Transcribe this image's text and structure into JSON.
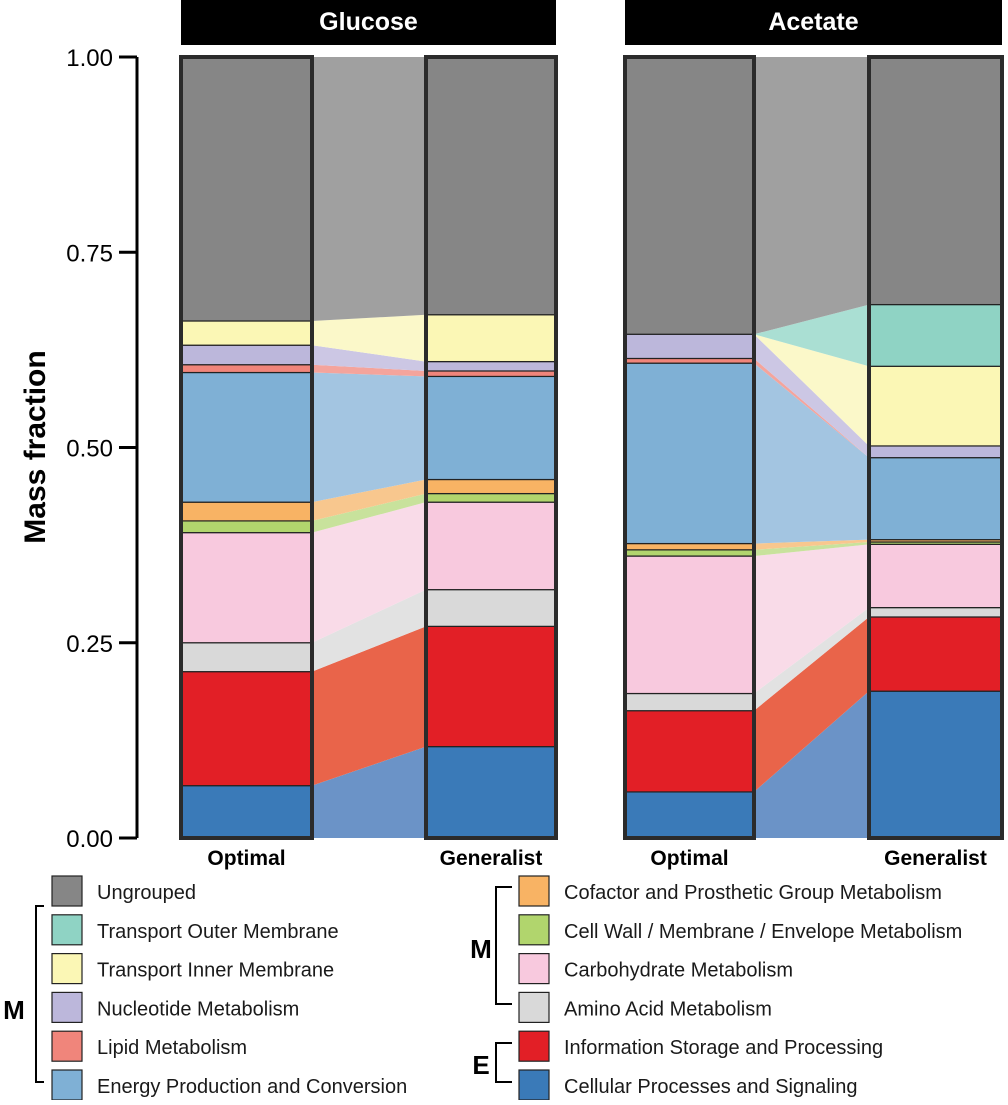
{
  "chart_data": {
    "type": "alluvial-stacked-bar",
    "ylabel": "Mass fraction",
    "ylim": [
      0,
      1
    ],
    "yticks": [
      "0.00",
      "0.25",
      "0.50",
      "0.75",
      "1.00"
    ],
    "bar_labels": [
      "Optimal",
      "Generalist"
    ],
    "categories": [
      {
        "name": "Cellular Processes and Signaling",
        "color": "#3a7ab8",
        "flow_color": "#6b93c7",
        "group": "E"
      },
      {
        "name": "Information Storage and Processing",
        "color": "#e21f26",
        "flow_color": "#e9644a",
        "group": "E"
      },
      {
        "name": "Amino Acid Metabolism",
        "color": "#d9d9d9",
        "flow_color": "#e2e2e2",
        "group": "M"
      },
      {
        "name": "Carbohydrate Metabolism",
        "color": "#f8c9de",
        "flow_color": "#f9dbe8",
        "group": "M"
      },
      {
        "name": "Cell Wall / Membrane / Envelope Metabolism",
        "color": "#b1d56d",
        "flow_color": "#c8e29c",
        "group": "M"
      },
      {
        "name": "Cofactor and Prosthetic Group Metabolism",
        "color": "#f8b364",
        "flow_color": "#f8c78e",
        "group": "M"
      },
      {
        "name": "Energy Production and Conversion",
        "color": "#7fb0d5",
        "flow_color": "#a3c5e1",
        "group": "M"
      },
      {
        "name": "Lipid Metabolism",
        "color": "#f0857b",
        "flow_color": "#f4a49c",
        "group": "M"
      },
      {
        "name": "Nucleotide Metabolism",
        "color": "#bcb7db",
        "flow_color": "#ccc7e4",
        "group": "M"
      },
      {
        "name": "Transport Inner Membrane",
        "color": "#fbf7b5",
        "flow_color": "#fbf8c9",
        "group": "M"
      },
      {
        "name": "Transport Outer Membrane",
        "color": "#8fd3c4",
        "flow_color": "#aadfd3",
        "group": "M"
      },
      {
        "name": "Ungrouped",
        "color": "#868686",
        "flow_color": "#a0a0a0",
        "group": ""
      }
    ],
    "panels": [
      {
        "title": "Glucose",
        "optimal": [
          0.067,
          0.146,
          0.037,
          0.141,
          0.015,
          0.024,
          0.166,
          0.01,
          0.025,
          0.031,
          0.0,
          0.338
        ],
        "generalist": [
          0.117,
          0.154,
          0.047,
          0.112,
          0.011,
          0.018,
          0.132,
          0.007,
          0.012,
          0.06,
          0.0,
          0.33
        ]
      },
      {
        "title": "Acetate",
        "optimal": [
          0.059,
          0.104,
          0.022,
          0.176,
          0.008,
          0.008,
          0.231,
          0.006,
          0.031,
          0.0,
          0.0,
          0.355
        ],
        "generalist": [
          0.188,
          0.095,
          0.012,
          0.081,
          0.003,
          0.003,
          0.105,
          0.0,
          0.015,
          0.102,
          0.079,
          0.317
        ]
      }
    ],
    "legend": {
      "left_column": [
        "Ungrouped",
        "Transport Outer Membrane",
        "Transport Inner Membrane",
        "Nucleotide Metabolism",
        "Lipid Metabolism",
        "Energy Production and Conversion"
      ],
      "right_column": [
        "Cofactor and Prosthetic Group Metabolism",
        "Cell Wall / Membrane / Envelope Metabolism",
        "Carbohydrate Metabolism",
        "Amino Acid Metabolism",
        "Information Storage and Processing",
        "Cellular Processes and Signaling"
      ],
      "group_labels": {
        "metabolism": "M",
        "essential": "E"
      }
    }
  }
}
